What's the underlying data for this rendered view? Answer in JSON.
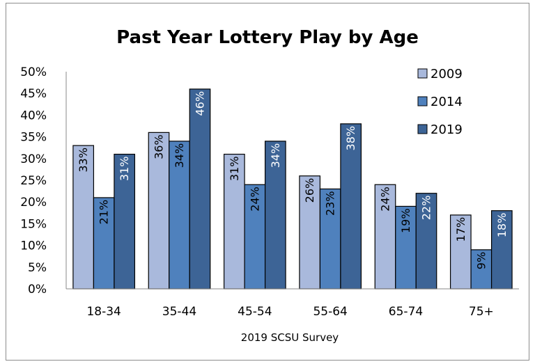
{
  "chart_data": {
    "type": "bar",
    "title": "Past Year Lottery Play by Age",
    "xlabel": "2019 SCSU Survey",
    "ylabel": "",
    "categories": [
      "18-34",
      "35-44",
      "45-54",
      "55-64",
      "65-74",
      "75+"
    ],
    "ylim": [
      0,
      50
    ],
    "yticks": [
      "0%",
      "5%",
      "10%",
      "15%",
      "20%",
      "25%",
      "30%",
      "35%",
      "40%",
      "45%",
      "50%"
    ],
    "legend_position": "top-right",
    "series": [
      {
        "name": "2009",
        "color": "#a9b9dc",
        "values": [
          33,
          36,
          31,
          26,
          24,
          17
        ],
        "labels": [
          "33%",
          "36%",
          "31%",
          "26%",
          "24%",
          "17%"
        ]
      },
      {
        "name": "2014",
        "color": "#4f81bd",
        "values": [
          21,
          34,
          24,
          23,
          19,
          9
        ],
        "labels": [
          "21%",
          "34%",
          "24%",
          "23%",
          "19%",
          "9%"
        ]
      },
      {
        "name": "2019",
        "color": "#3d6496",
        "values": [
          31,
          46,
          34,
          38,
          22,
          18
        ],
        "labels": [
          "31%",
          "46%",
          "34%",
          "38%",
          "22%",
          "18%"
        ]
      }
    ]
  }
}
